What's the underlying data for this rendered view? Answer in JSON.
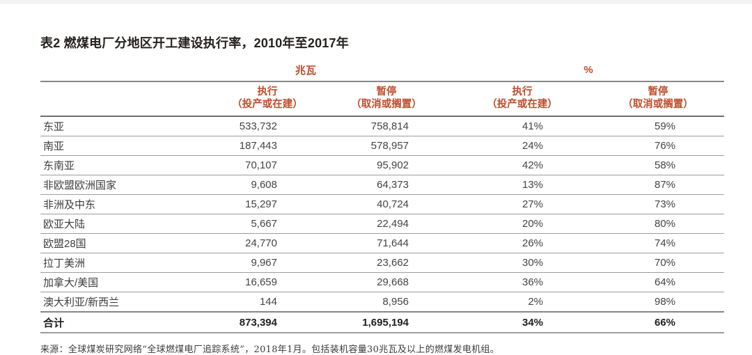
{
  "title": "表2 燃煤电厂分地区开工建设执行率，2010年至2017年",
  "table": {
    "group_headers": {
      "mw": "兆瓦",
      "pct": "%"
    },
    "col_headers": [
      {
        "line1": "执行",
        "line2": "（投产或在建）"
      },
      {
        "line1": "暂停",
        "line2": "（取消或搁置）"
      },
      {
        "line1": "执行",
        "line2": "（投产或在建）"
      },
      {
        "line1": "暂停",
        "line2": "（取消或搁置）"
      }
    ],
    "rows": [
      {
        "region": "东亚",
        "mw_exec": "533,732",
        "mw_halt": "758,814",
        "pct_exec": "41%",
        "pct_halt": "59%"
      },
      {
        "region": "南亚",
        "mw_exec": "187,443",
        "mw_halt": "578,957",
        "pct_exec": "24%",
        "pct_halt": "76%"
      },
      {
        "region": "东南亚",
        "mw_exec": "70,107",
        "mw_halt": "95,902",
        "pct_exec": "42%",
        "pct_halt": "58%"
      },
      {
        "region": "非欧盟欧洲国家",
        "mw_exec": "9,608",
        "mw_halt": "64,373",
        "pct_exec": "13%",
        "pct_halt": "87%"
      },
      {
        "region": "非洲及中东",
        "mw_exec": "15,297",
        "mw_halt": "40,724",
        "pct_exec": "27%",
        "pct_halt": "73%"
      },
      {
        "region": "欧亚大陆",
        "mw_exec": "5,667",
        "mw_halt": "22,494",
        "pct_exec": "20%",
        "pct_halt": "80%"
      },
      {
        "region": "欧盟28国",
        "mw_exec": "24,770",
        "mw_halt": "71,644",
        "pct_exec": "26%",
        "pct_halt": "74%"
      },
      {
        "region": "拉丁美洲",
        "mw_exec": "9,967",
        "mw_halt": "23,662",
        "pct_exec": "30%",
        "pct_halt": "70%"
      },
      {
        "region": "加拿大/美国",
        "mw_exec": "16,659",
        "mw_halt": "29,668",
        "pct_exec": "36%",
        "pct_halt": "64%"
      },
      {
        "region": "澳大利亚/新西兰",
        "mw_exec": "144",
        "mw_halt": "8,956",
        "pct_exec": "2%",
        "pct_halt": "98%"
      }
    ],
    "total": {
      "region": "合计",
      "mw_exec": "873,394",
      "mw_halt": "1,695,194",
      "pct_exec": "34%",
      "pct_halt": "66%"
    }
  },
  "source": "来源：全球煤炭研究网络“全球燃煤电厂追踪系统”，2018年1月。包括装机容量30兆瓦及以上的燃煤发电机组。",
  "colors": {
    "accent": "#bf4c2a",
    "title_text": "#26211f",
    "body_text": "#434343",
    "rule_dark": "#6f6f6f",
    "rule_light": "#9c9c9c"
  }
}
